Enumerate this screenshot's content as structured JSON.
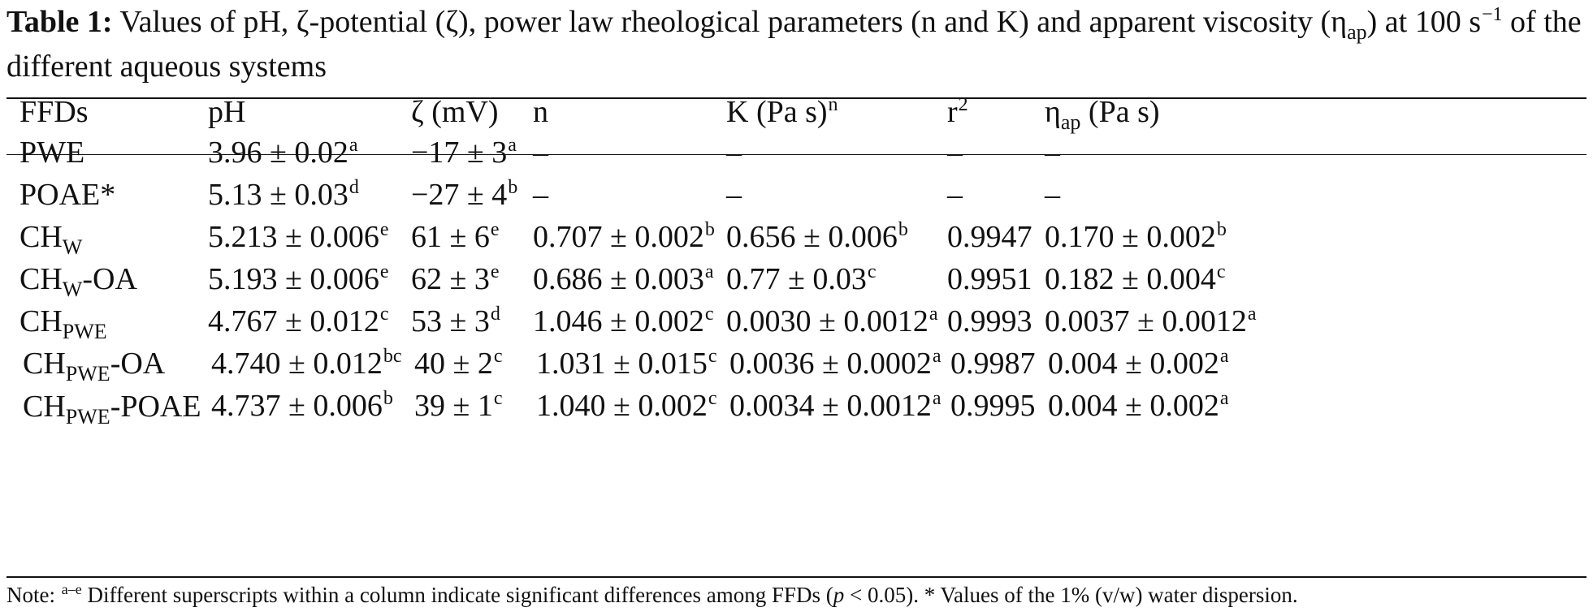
{
  "caption": {
    "label": "Table 1:",
    "text_part1": "Values of pH, ζ-potential (ζ), power law rheological parameters (n and K) and apparent viscosity (η",
    "text_sub": "ap",
    "text_part2": ") at 100 s",
    "text_sup": "−1",
    "text_part3": " of the different aqueous systems"
  },
  "headers": {
    "ffds": "FFDs",
    "ph": "pH",
    "zeta": "ζ (mV)",
    "n": "n",
    "k_main": "K (Pa s)",
    "k_sup": "n",
    "r_main": "r",
    "r_sup": "2",
    "eta_main": "η",
    "eta_sub": "ap",
    "eta_rest": " (Pa s)"
  },
  "rows": [
    {
      "ffd": {
        "main": "PWE",
        "sub": "",
        "rest": ""
      },
      "ph": {
        "v": "3.96 ± 0.02",
        "s": "a"
      },
      "zeta": {
        "v": "−17 ± 3",
        "s": "a"
      },
      "n": {
        "v": "–",
        "s": ""
      },
      "k": {
        "v": "–",
        "s": ""
      },
      "r2": "–",
      "eta": {
        "v": "–",
        "s": ""
      }
    },
    {
      "ffd": {
        "main": "POAE*",
        "sub": "",
        "rest": ""
      },
      "ph": {
        "v": "5.13 ± 0.03",
        "s": "d"
      },
      "zeta": {
        "v": "−27 ± 4",
        "s": "b"
      },
      "n": {
        "v": "–",
        "s": ""
      },
      "k": {
        "v": "–",
        "s": ""
      },
      "r2": "–",
      "eta": {
        "v": "–",
        "s": ""
      }
    },
    {
      "ffd": {
        "main": "CH",
        "sub": "W",
        "rest": ""
      },
      "ph": {
        "v": "5.213 ± 0.006",
        "s": "e"
      },
      "zeta": {
        "v": "61 ± 6",
        "s": "e"
      },
      "n": {
        "v": "0.707 ± 0.002",
        "s": "b"
      },
      "k": {
        "v": "0.656 ± 0.006",
        "s": "b"
      },
      "r2": "0.9947",
      "eta": {
        "v": "0.170 ± 0.002",
        "s": "b"
      }
    },
    {
      "ffd": {
        "main": "CH",
        "sub": "W",
        "rest": "-OA"
      },
      "ph": {
        "v": "5.193 ± 0.006",
        "s": "e"
      },
      "zeta": {
        "v": "62 ± 3",
        "s": "e"
      },
      "n": {
        "v": "0.686 ± 0.003",
        "s": "a"
      },
      "k": {
        "v": "0.77 ± 0.03",
        "s": "c"
      },
      "r2": "0.9951",
      "eta": {
        "v": "0.182 ± 0.004",
        "s": "c"
      }
    },
    {
      "ffd": {
        "main": "CH",
        "sub": "PWE",
        "rest": ""
      },
      "ph": {
        "v": "4.767 ± 0.012",
        "s": "c"
      },
      "zeta": {
        "v": "53 ± 3",
        "s": "d"
      },
      "n": {
        "v": "1.046 ± 0.002",
        "s": "c"
      },
      "k": {
        "v": "0.0030 ± 0.0012",
        "s": "a"
      },
      "r2": "0.9993",
      "eta": {
        "v": "0.0037 ± 0.0012",
        "s": "a"
      }
    },
    {
      "ffd": {
        "main": "CH",
        "sub": "PWE",
        "rest": "-OA"
      },
      "ph": {
        "v": "4.740 ± 0.012",
        "s": "bc"
      },
      "zeta": {
        "v": "40 ± 2",
        "s": "c"
      },
      "n": {
        "v": "1.031 ± 0.015",
        "s": "c"
      },
      "k": {
        "v": "0.0036 ± 0.0002",
        "s": "a"
      },
      "r2": "0.9987",
      "eta": {
        "v": "0.004 ± 0.002",
        "s": "a"
      }
    },
    {
      "ffd": {
        "main": "CH",
        "sub": "PWE",
        "rest": "-POAE"
      },
      "ph": {
        "v": "4.737 ± 0.006",
        "s": "b"
      },
      "zeta": {
        "v": "39 ± 1",
        "s": "c"
      },
      "n": {
        "v": "1.040 ± 0.002",
        "s": "c"
      },
      "k": {
        "v": "0.0034 ± 0.0012",
        "s": "a"
      },
      "r2": "0.9995",
      "eta": {
        "v": "0.004 ± 0.002",
        "s": "a"
      }
    }
  ],
  "note": {
    "prefix": "Note: ",
    "sup": "a–e",
    "text1": " Different superscripts within a column indicate significant differences among FFDs (",
    "p": "p",
    "text2": " < 0.05). * Values of the 1% (v/w) water dispersion."
  }
}
